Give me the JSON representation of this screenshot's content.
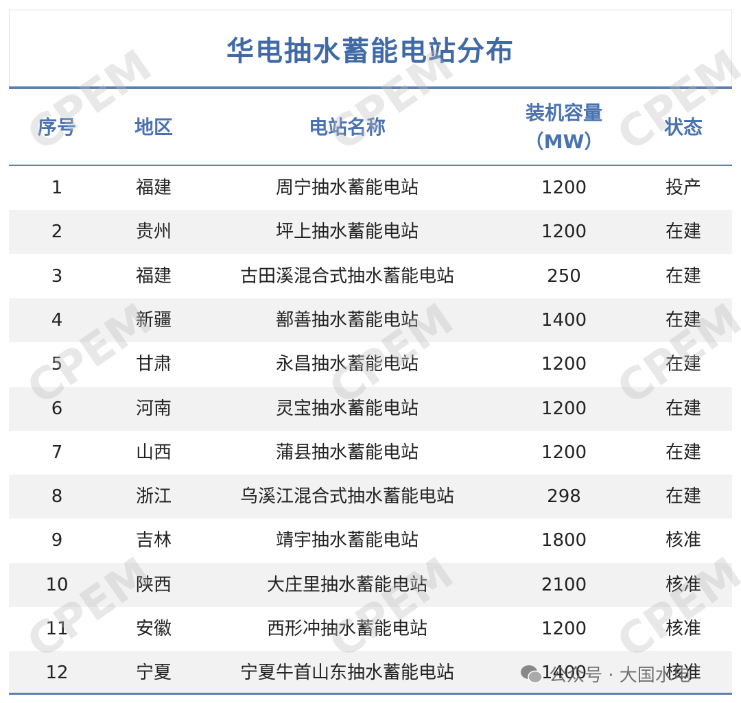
{
  "title": "华电抽水蓄能电站分布",
  "table": {
    "headers": [
      "序号",
      "地区",
      "电站名称",
      "装机容量（MW）",
      "状态"
    ],
    "rows": [
      [
        1,
        "福建",
        "周宁抽水蓄能电站",
        1200,
        "投产"
      ],
      [
        2,
        "贵州",
        "坪上抽水蓄能电站",
        1200,
        "在建"
      ],
      [
        3,
        "福建",
        "古田溪混合式抽水蓄能电站",
        250,
        "在建"
      ],
      [
        4,
        "新疆",
        "鄯善抽水蓄能电站",
        1400,
        "在建"
      ],
      [
        5,
        "甘肃",
        "永昌抽水蓄能电站",
        1200,
        "在建"
      ],
      [
        6,
        "河南",
        "灵宝抽水蓄能电站",
        1200,
        "在建"
      ],
      [
        7,
        "山西",
        "蒲县抽水蓄能电站",
        1200,
        "在建"
      ],
      [
        8,
        "浙江",
        "乌溪江混合式抽水蓄能电站",
        298,
        "在建"
      ],
      [
        9,
        "吉林",
        "靖宇抽水蓄能电站",
        1800,
        "核准"
      ],
      [
        10,
        "陕西",
        "大庄里抽水蓄能电站",
        2100,
        "核准"
      ],
      [
        11,
        "安徽",
        "西形冲抽水蓄能电站",
        1200,
        "核准"
      ],
      [
        12,
        "宁夏",
        "宁夏牛首山东抽水蓄能电站",
        1400,
        "核准"
      ]
    ]
  },
  "watermark": "CPEM",
  "footer": "公众号 · 大国水电"
}
